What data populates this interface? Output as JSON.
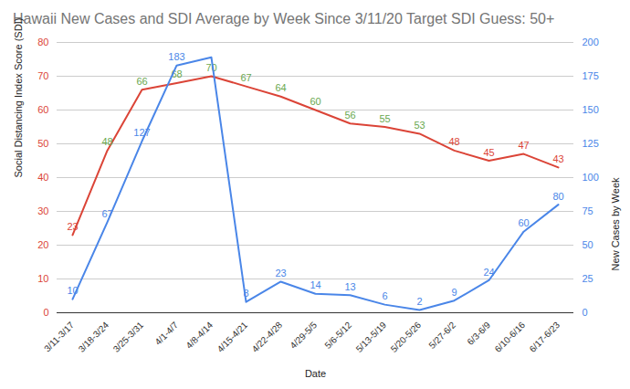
{
  "chart_data": {
    "type": "line",
    "title": "Hawaii New Cases and SDI Average by Week Since 3/11/20 Target SDI Guess: 50+",
    "xlabel": "Date",
    "ylabel": "Social Distancing Index Score (SDI)",
    "y2label": "New Cases by Week",
    "categories": [
      "3/11-3/17",
      "3/18-3/24",
      "3/25-3/31",
      "4/1-4/7",
      "4/8-4/14",
      "4/15-4/21",
      "4/22-4/28",
      "4/29-5/5",
      "5/6-5/12",
      "5/13-5/19",
      "5/20-5/26",
      "5/27-6/2",
      "6/3-6/9",
      "6/10-6/16",
      "6/17-6/23"
    ],
    "series": [
      {
        "color": "#db4437",
        "colors": [
          "#db4437",
          "#6aa84f",
          "#6aa84f",
          "#6aa84f",
          "#6aa84f",
          "#6aa84f",
          "#6aa84f",
          "#6aa84f",
          "#6aa84f",
          "#6aa84f",
          "#6aa84f",
          "#db4437",
          "#db4437",
          "#db4437",
          "#db4437"
        ],
        "values": [
          23,
          48,
          66,
          68,
          70,
          67,
          64,
          60,
          56,
          55,
          53,
          48,
          45,
          47,
          43
        ],
        "data_labels": true
      },
      {
        "axis": "y2",
        "color": "#4a86e8",
        "values": [
          10,
          67,
          127,
          183,
          189,
          8,
          23,
          14,
          13,
          6,
          2,
          9,
          24,
          60,
          80
        ],
        "value_labels": [
          "10",
          "67",
          "127",
          "183",
          null,
          "8",
          "23",
          "14",
          "13",
          "6",
          "2",
          "9",
          "24",
          "60",
          "80"
        ],
        "data_labels": true
      }
    ],
    "ylim": [
      0,
      80
    ],
    "yticks": [
      0,
      10,
      20,
      30,
      40,
      50,
      60,
      70,
      80
    ],
    "y2lim": [
      0,
      200
    ],
    "y2ticks": [
      0,
      25,
      50,
      75,
      100,
      125,
      150,
      175,
      200
    ],
    "grid": true
  }
}
